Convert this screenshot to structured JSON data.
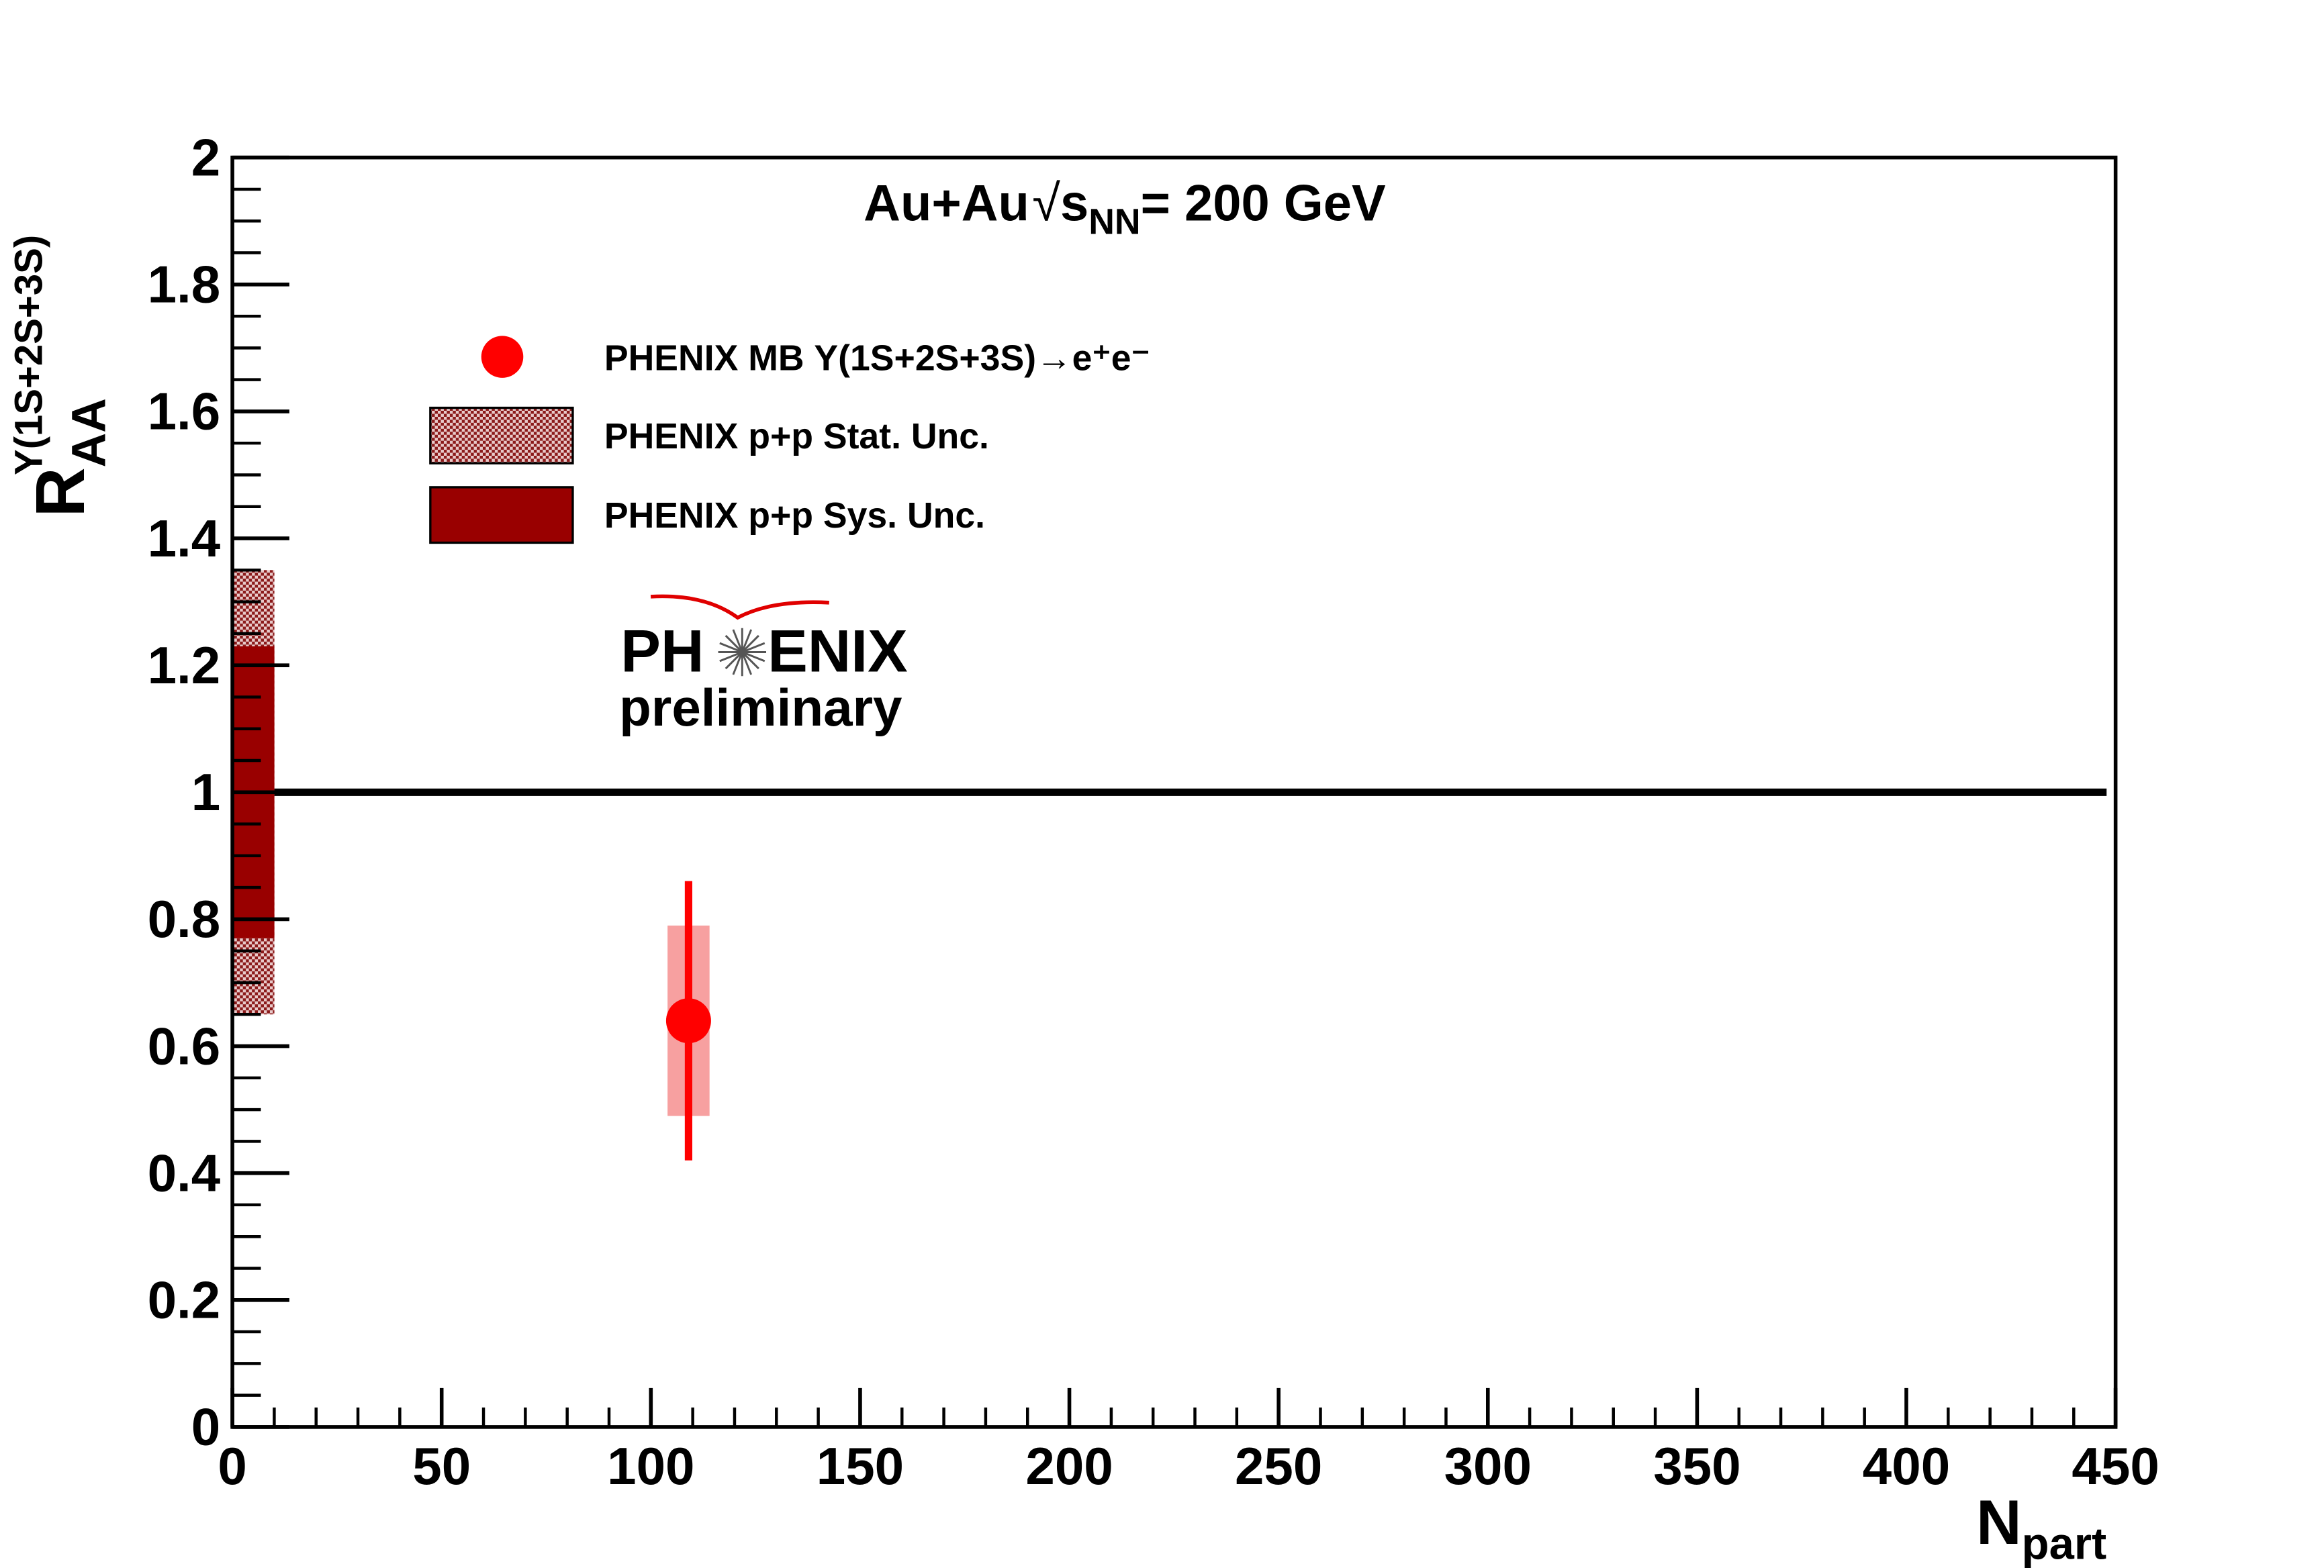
{
  "chart_data": {
    "type": "errorbar",
    "title": {
      "main": "Au+Au",
      "sqrt": "s",
      "sub": "NN",
      "rest": "= 200 GeV"
    },
    "x_label": {
      "main": "N",
      "sub": "part"
    },
    "y_label": {
      "main": "R",
      "sub": "AA",
      "sup": "Υ(1S+2S+3S)"
    },
    "xlim": [
      0,
      450
    ],
    "xticks": [
      0,
      50,
      100,
      150,
      200,
      250,
      300,
      350,
      400,
      450
    ],
    "ylim": [
      0,
      2
    ],
    "yticks": [
      0,
      0.2,
      0.4,
      0.6,
      0.8,
      1,
      1.2,
      1.4,
      1.6,
      1.8,
      2
    ],
    "x_minor_divisions": 5,
    "y_minor_divisions": 4,
    "reference_line": 1,
    "series": [
      {
        "name": "PHENIX MB Υ(1S+2S+3S)→e⁺e⁻",
        "color": "#ff0000",
        "sys_color": "#f7a0a0",
        "x": [
          109
        ],
        "values": [
          0.64
        ],
        "stat_err": [
          0.22
        ],
        "sys_err": [
          0.15
        ]
      },
      {
        "name": "PHENIX p+p Stat. Unc.",
        "color": "#a03a3a",
        "x": [
          0
        ],
        "values": [
          1
        ],
        "errors": [
          0.35
        ]
      },
      {
        "name": "PHENIX p+p Sys. Unc.",
        "color": "#990000",
        "x": [
          0
        ],
        "values": [
          1
        ],
        "errors": [
          0.23
        ]
      }
    ],
    "logo": {
      "left": "PH",
      "right": "ENIX",
      "caption": "preliminary"
    }
  }
}
